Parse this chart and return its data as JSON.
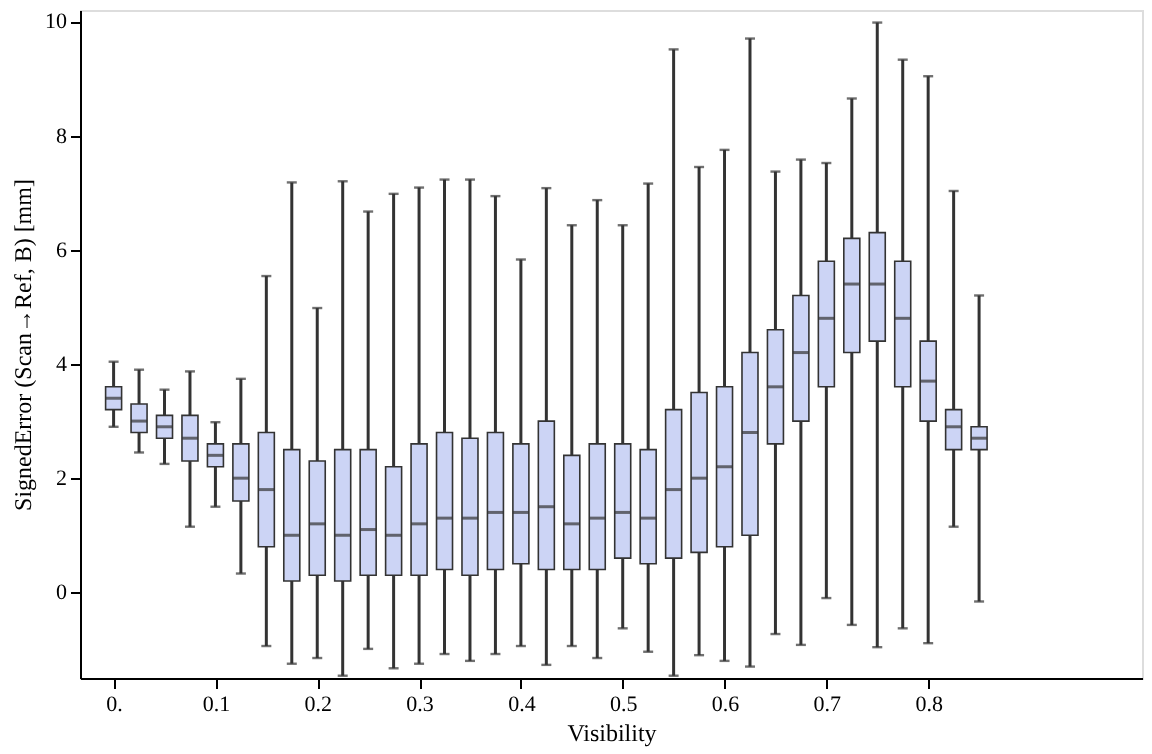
{
  "chart_data": {
    "type": "box",
    "xlabel": "Visibility",
    "ylabel": "SignedError (Scan→Ref, B) [mm]",
    "x": [
      0,
      0.025,
      0.05,
      0.075,
      0.1,
      0.125,
      0.15,
      0.175,
      0.2,
      0.225,
      0.25,
      0.275,
      0.3,
      0.325,
      0.35,
      0.375,
      0.4,
      0.425,
      0.45,
      0.475,
      0.5,
      0.525,
      0.55,
      0.575,
      0.6,
      0.625,
      0.65,
      0.675,
      0.7,
      0.725,
      0.75,
      0.775,
      0.8,
      0.825,
      0.85
    ],
    "color": "#ccd4f5",
    "boxes": [
      {
        "low": 2.9,
        "q1": 3.2,
        "median": 3.4,
        "q3": 3.6,
        "high": 4.04
      },
      {
        "low": 2.45,
        "q1": 2.8,
        "median": 3.0,
        "q3": 3.3,
        "high": 3.9
      },
      {
        "low": 2.25,
        "q1": 2.7,
        "median": 2.9,
        "q3": 3.1,
        "high": 3.55
      },
      {
        "low": 1.15,
        "q1": 2.3,
        "median": 2.7,
        "q3": 3.1,
        "high": 3.87
      },
      {
        "low": 1.5,
        "q1": 2.2,
        "median": 2.4,
        "q3": 2.6,
        "high": 2.98
      },
      {
        "low": 0.33,
        "q1": 1.6,
        "median": 2.0,
        "q3": 2.6,
        "high": 3.74
      },
      {
        "low": -0.94,
        "q1": 0.8,
        "median": 1.8,
        "q3": 2.8,
        "high": 5.54
      },
      {
        "low": -1.25,
        "q1": 0.2,
        "median": 1.0,
        "q3": 2.5,
        "high": 7.18
      },
      {
        "low": -1.15,
        "q1": 0.3,
        "median": 1.2,
        "q3": 2.3,
        "high": 4.98
      },
      {
        "low": -1.46,
        "q1": 0.2,
        "median": 1.0,
        "q3": 2.5,
        "high": 7.2
      },
      {
        "low": -0.99,
        "q1": 0.3,
        "median": 1.1,
        "q3": 2.5,
        "high": 6.67
      },
      {
        "low": -1.33,
        "q1": 0.3,
        "median": 1.0,
        "q3": 2.2,
        "high": 6.98
      },
      {
        "low": -1.25,
        "q1": 0.3,
        "median": 1.2,
        "q3": 2.6,
        "high": 7.09
      },
      {
        "low": -1.08,
        "q1": 0.4,
        "median": 1.3,
        "q3": 2.8,
        "high": 7.23
      },
      {
        "low": -1.2,
        "q1": 0.3,
        "median": 1.3,
        "q3": 2.7,
        "high": 7.23
      },
      {
        "low": -1.08,
        "q1": 0.4,
        "median": 1.4,
        "q3": 2.8,
        "high": 6.94
      },
      {
        "low": -0.94,
        "q1": 0.5,
        "median": 1.4,
        "q3": 2.6,
        "high": 5.83
      },
      {
        "low": -1.27,
        "q1": 0.4,
        "median": 1.5,
        "q3": 3.0,
        "high": 7.08
      },
      {
        "low": -0.94,
        "q1": 0.4,
        "median": 1.2,
        "q3": 2.4,
        "high": 6.43
      },
      {
        "low": -1.15,
        "q1": 0.4,
        "median": 1.3,
        "q3": 2.6,
        "high": 6.87
      },
      {
        "low": -0.63,
        "q1": 0.6,
        "median": 1.4,
        "q3": 2.6,
        "high": 6.43
      },
      {
        "low": -1.04,
        "q1": 0.5,
        "median": 1.3,
        "q3": 2.5,
        "high": 7.16
      },
      {
        "low": -1.46,
        "q1": 0.6,
        "median": 1.8,
        "q3": 3.2,
        "high": 9.51
      },
      {
        "low": -1.1,
        "q1": 0.7,
        "median": 2.0,
        "q3": 3.5,
        "high": 7.45
      },
      {
        "low": -1.2,
        "q1": 0.8,
        "median": 2.2,
        "q3": 3.6,
        "high": 7.75
      },
      {
        "low": -1.3,
        "q1": 1.0,
        "median": 2.8,
        "q3": 4.2,
        "high": 9.7
      },
      {
        "low": -0.73,
        "q1": 2.6,
        "median": 3.6,
        "q3": 4.6,
        "high": 7.37
      },
      {
        "low": -0.92,
        "q1": 3.0,
        "median": 4.2,
        "q3": 5.2,
        "high": 7.58
      },
      {
        "low": -0.1,
        "q1": 3.6,
        "median": 4.8,
        "q3": 5.8,
        "high": 7.52
      },
      {
        "low": -0.57,
        "q1": 4.2,
        "median": 5.4,
        "q3": 6.2,
        "high": 8.65
      },
      {
        "low": -0.96,
        "q1": 4.4,
        "median": 5.4,
        "q3": 6.3,
        "high": 9.98
      },
      {
        "low": -0.63,
        "q1": 3.6,
        "median": 4.8,
        "q3": 5.8,
        "high": 9.33
      },
      {
        "low": -0.89,
        "q1": 3.0,
        "median": 3.7,
        "q3": 4.4,
        "high": 9.04
      },
      {
        "low": 1.15,
        "q1": 2.5,
        "median": 2.9,
        "q3": 3.2,
        "high": 7.03
      },
      {
        "low": -0.16,
        "q1": 2.5,
        "median": 2.7,
        "q3": 2.9,
        "high": 5.2
      }
    ],
    "xlim": [
      -0.033,
      1.01
    ],
    "xticks": [
      {
        "value": 0,
        "label": "0."
      },
      0.1,
      0.2,
      0.3,
      0.4,
      0.5,
      0.6,
      0.7,
      0.8
    ],
    "ylim": [
      -1.5,
      10.2
    ],
    "yticks": [
      0,
      2,
      4,
      6,
      8,
      10
    ],
    "grid": false
  }
}
